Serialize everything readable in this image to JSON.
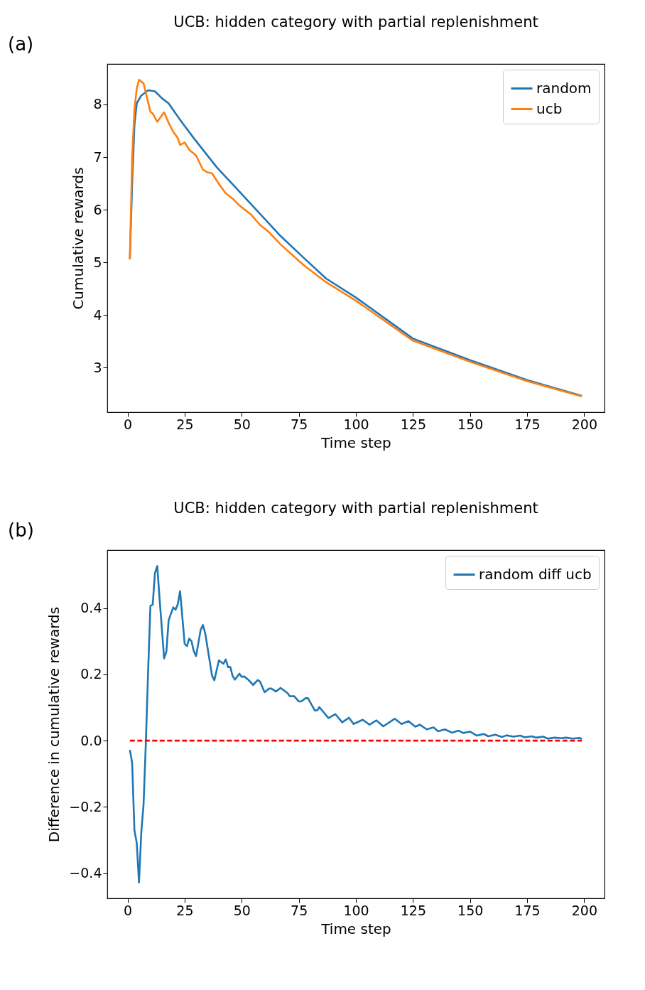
{
  "chart_data": [
    {
      "type": "line",
      "title": "UCB: hidden category with partial replenishment",
      "xlabel": "Time step",
      "ylabel": "Cumulative rewards",
      "annotations": [
        "(a)"
      ],
      "xlim": [
        -8.9,
        208.9
      ],
      "ylim": [
        2.15,
        8.77
      ],
      "xticks": [
        0,
        25,
        50,
        75,
        100,
        125,
        150,
        175,
        200
      ],
      "yticks": [
        3,
        4,
        5,
        6,
        7,
        8
      ],
      "grid": false,
      "legend": "top right",
      "marker": "none",
      "line_style": "solid",
      "series": [
        {
          "name": "random",
          "color": "#1f77b4",
          "x": [
            1,
            2,
            3,
            4,
            6,
            9,
            12,
            15,
            18,
            21,
            24,
            29,
            39,
            48,
            58,
            67,
            77,
            87,
            100,
            125,
            150,
            175,
            199
          ],
          "values": [
            5.06,
            6.5,
            7.6,
            8.02,
            8.17,
            8.27,
            8.25,
            8.12,
            8.02,
            7.83,
            7.65,
            7.36,
            6.81,
            6.39,
            5.92,
            5.5,
            5.09,
            4.69,
            4.33,
            3.55,
            3.14,
            2.76,
            2.46
          ]
        },
        {
          "name": "ucb",
          "color": "#ff7f0e",
          "x": [
            1,
            2,
            3,
            4,
            5,
            7,
            10,
            11,
            13,
            16,
            18,
            20,
            22,
            23,
            25,
            27,
            30,
            33,
            35,
            37,
            40,
            43,
            46,
            49,
            54,
            58,
            62,
            67,
            77,
            87,
            100,
            125,
            150,
            175,
            199
          ],
          "values": [
            5.06,
            7.0,
            7.9,
            8.3,
            8.47,
            8.4,
            7.86,
            7.83,
            7.67,
            7.85,
            7.65,
            7.48,
            7.36,
            7.23,
            7.28,
            7.14,
            7.03,
            6.76,
            6.71,
            6.69,
            6.49,
            6.31,
            6.21,
            6.08,
            5.91,
            5.71,
            5.57,
            5.34,
            4.95,
            4.62,
            4.27,
            3.51,
            3.11,
            2.74,
            2.45
          ]
        }
      ]
    },
    {
      "type": "line",
      "title": "UCB: hidden category with partial replenishment",
      "xlabel": "Time step",
      "ylabel": "Difference in cumulative rewards",
      "annotations": [
        "(b)"
      ],
      "xlim": [
        -8.9,
        208.9
      ],
      "ylim": [
        -0.476,
        0.575
      ],
      "xticks": [
        0,
        25,
        50,
        75,
        100,
        125,
        150,
        175,
        200
      ],
      "yticks": [
        {
          "value": -0.4,
          "label": "−0.4"
        },
        {
          "value": -0.2,
          "label": "−0.2"
        },
        {
          "value": 0,
          "label": "0.0"
        },
        {
          "value": 0.2,
          "label": "0.2"
        },
        {
          "value": 0.4,
          "label": "0.4"
        }
      ],
      "grid": false,
      "legend": "top right",
      "marker": "none",
      "line_style": "solid",
      "series": [
        {
          "name": "random diff ucb",
          "color": "#1f77b4",
          "x": [
            1,
            2,
            3,
            4,
            5,
            6,
            7,
            8,
            9,
            10,
            11,
            12,
            13,
            14,
            16,
            17,
            18,
            20,
            21,
            22,
            23,
            25,
            26,
            27,
            28,
            29,
            30,
            32,
            33,
            34,
            37,
            38,
            40,
            42,
            43,
            44,
            45,
            46,
            47,
            49,
            50,
            51,
            53,
            55,
            57,
            58,
            60,
            62,
            63,
            65,
            67,
            70,
            71,
            73,
            75,
            76,
            78,
            79,
            82,
            83,
            84,
            88,
            91,
            94,
            97,
            99,
            103,
            106,
            109,
            112,
            117,
            120,
            123,
            126,
            128,
            131,
            134,
            136,
            139,
            142,
            145,
            147,
            150,
            153,
            156,
            158,
            161,
            164,
            166,
            169,
            172,
            174,
            177,
            179,
            182,
            184,
            187,
            190,
            192,
            195,
            198,
            199
          ],
          "values": [
            -0.028,
            -0.067,
            -0.271,
            -0.308,
            -0.428,
            -0.278,
            -0.192,
            -0.007,
            0.21,
            0.407,
            0.41,
            0.506,
            0.527,
            0.43,
            0.248,
            0.269,
            0.364,
            0.402,
            0.395,
            0.412,
            0.451,
            0.292,
            0.285,
            0.308,
            0.3,
            0.27,
            0.255,
            0.334,
            0.349,
            0.324,
            0.196,
            0.182,
            0.242,
            0.232,
            0.245,
            0.222,
            0.222,
            0.195,
            0.184,
            0.202,
            0.192,
            0.194,
            0.183,
            0.168,
            0.183,
            0.178,
            0.146,
            0.157,
            0.157,
            0.148,
            0.159,
            0.144,
            0.134,
            0.134,
            0.118,
            0.118,
            0.128,
            0.128,
            0.091,
            0.091,
            0.101,
            0.068,
            0.08,
            0.055,
            0.069,
            0.05,
            0.063,
            0.048,
            0.061,
            0.043,
            0.066,
            0.05,
            0.059,
            0.042,
            0.048,
            0.034,
            0.04,
            0.028,
            0.034,
            0.024,
            0.03,
            0.023,
            0.027,
            0.015,
            0.02,
            0.013,
            0.018,
            0.011,
            0.016,
            0.012,
            0.015,
            0.01,
            0.013,
            0.009,
            0.012,
            0.006,
            0.009,
            0.007,
            0.009,
            0.006,
            0.008,
            0.005
          ]
        },
        {
          "color": "#ff0000",
          "line_style": "dashed",
          "x": [
            1,
            199
          ],
          "values": [
            0,
            0
          ]
        }
      ]
    }
  ]
}
